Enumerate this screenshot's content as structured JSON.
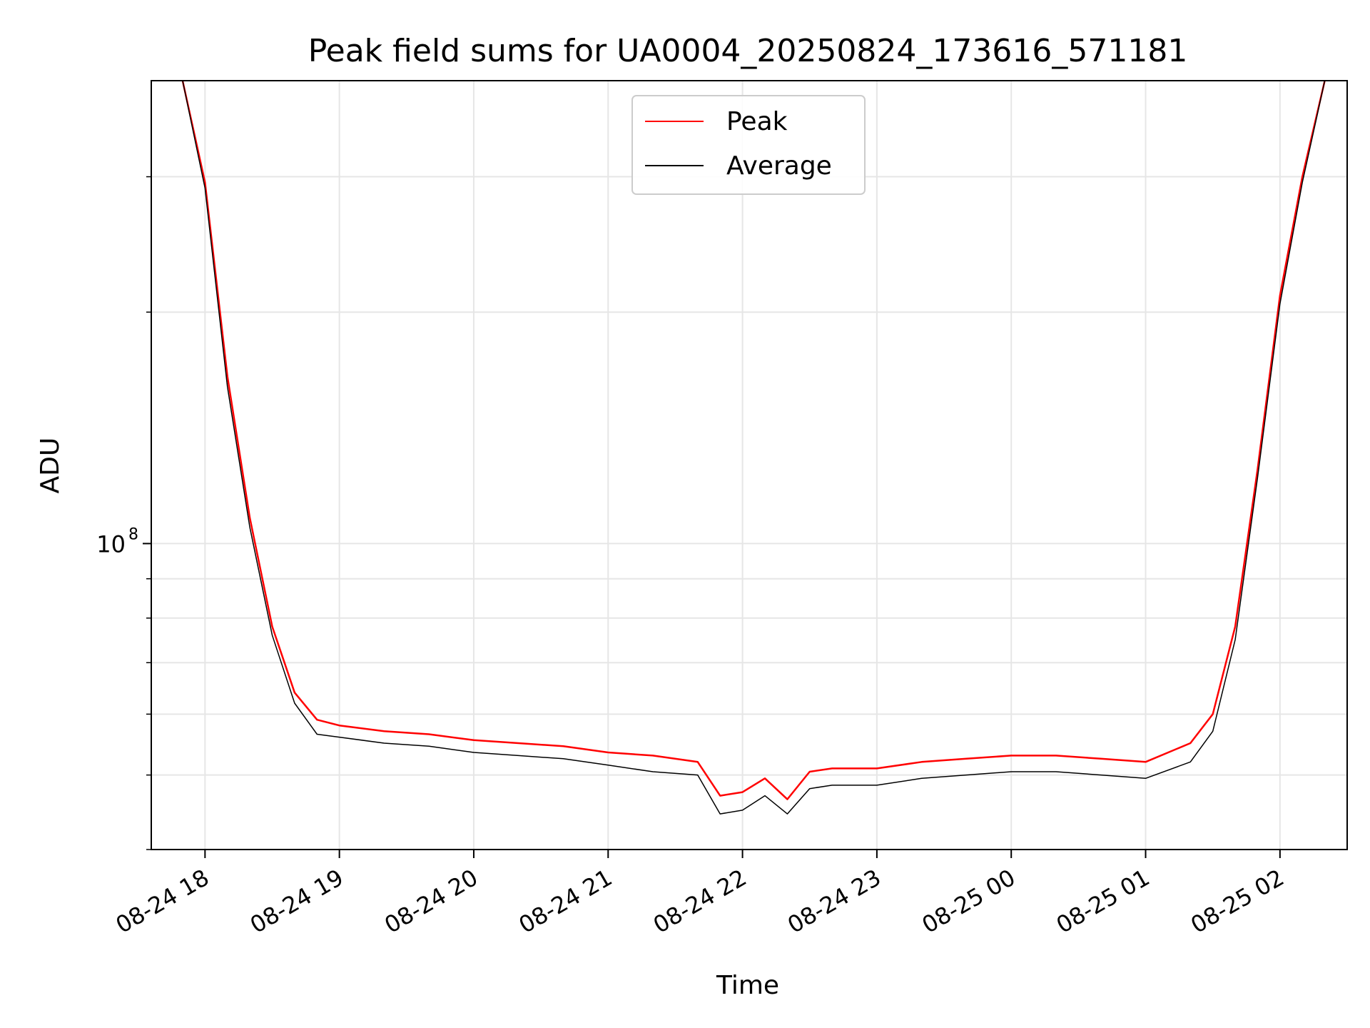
{
  "chart_data": {
    "type": "line",
    "title": "Peak field sums for UA0004_20250824_173616_571181",
    "xlabel": "Time",
    "ylabel": "ADU",
    "y_scale": "log",
    "ylim": [
      40000000,
      400000000
    ],
    "xlim": [
      "2025-08-24 17:36",
      "2025-08-25 02:30"
    ],
    "grid": true,
    "legend_position": "top-center",
    "x_tick_labels": [
      "08-24 18",
      "08-24 19",
      "08-24 20",
      "08-24 21",
      "08-24 22",
      "08-24 23",
      "08-25 00",
      "08-25 01",
      "08-25 02"
    ],
    "x_ticks": [
      "2025-08-24 18:00",
      "2025-08-24 19:00",
      "2025-08-24 20:00",
      "2025-08-24 21:00",
      "2025-08-24 22:00",
      "2025-08-24 23:00",
      "2025-08-25 00:00",
      "2025-08-25 01:00",
      "2025-08-25 02:00"
    ],
    "y_major_tick": {
      "value": 100000000,
      "label_base": "10",
      "label_exp": "8"
    },
    "y_minor_ticks": [
      40000000,
      50000000,
      60000000,
      70000000,
      80000000,
      90000000,
      200000000,
      300000000
    ],
    "series": [
      {
        "name": "Peak",
        "color": "#ff0000",
        "x": [
          "2025-08-24 17:50",
          "2025-08-24 18:00",
          "2025-08-24 18:10",
          "2025-08-24 18:20",
          "2025-08-24 18:30",
          "2025-08-24 18:40",
          "2025-08-24 18:50",
          "2025-08-24 19:00",
          "2025-08-24 19:20",
          "2025-08-24 19:40",
          "2025-08-24 20:00",
          "2025-08-24 20:20",
          "2025-08-24 20:40",
          "2025-08-24 21:00",
          "2025-08-24 21:20",
          "2025-08-24 21:40",
          "2025-08-24 21:50",
          "2025-08-24 22:00",
          "2025-08-24 22:10",
          "2025-08-24 22:20",
          "2025-08-24 22:30",
          "2025-08-24 22:40",
          "2025-08-24 23:00",
          "2025-08-24 23:20",
          "2025-08-24 23:40",
          "2025-08-25 00:00",
          "2025-08-25 00:20",
          "2025-08-25 00:40",
          "2025-08-25 01:00",
          "2025-08-25 01:20",
          "2025-08-25 01:30",
          "2025-08-25 01:40",
          "2025-08-25 01:50",
          "2025-08-25 02:00",
          "2025-08-25 02:10",
          "2025-08-25 02:20"
        ],
        "y": [
          400000000,
          295000000,
          165000000,
          108000000,
          78000000,
          64000000,
          59000000,
          58000000,
          57000000,
          56500000,
          55500000,
          55000000,
          54500000,
          53500000,
          53000000,
          52000000,
          47000000,
          47500000,
          49500000,
          46500000,
          50500000,
          51000000,
          51000000,
          52000000,
          52500000,
          53000000,
          53000000,
          52500000,
          52000000,
          55000000,
          60000000,
          78000000,
          125000000,
          210000000,
          300000000,
          400000000
        ]
      },
      {
        "name": "Average",
        "color": "#000000",
        "x": [
          "2025-08-24 17:50",
          "2025-08-24 18:00",
          "2025-08-24 18:10",
          "2025-08-24 18:20",
          "2025-08-24 18:30",
          "2025-08-24 18:40",
          "2025-08-24 18:50",
          "2025-08-24 19:00",
          "2025-08-24 19:20",
          "2025-08-24 19:40",
          "2025-08-24 20:00",
          "2025-08-24 20:20",
          "2025-08-24 20:40",
          "2025-08-24 21:00",
          "2025-08-24 21:20",
          "2025-08-24 21:40",
          "2025-08-24 21:50",
          "2025-08-24 22:00",
          "2025-08-24 22:10",
          "2025-08-24 22:20",
          "2025-08-24 22:30",
          "2025-08-24 22:40",
          "2025-08-24 23:00",
          "2025-08-24 23:20",
          "2025-08-24 23:40",
          "2025-08-25 00:00",
          "2025-08-25 00:20",
          "2025-08-25 00:40",
          "2025-08-25 01:00",
          "2025-08-25 01:20",
          "2025-08-25 01:30",
          "2025-08-25 01:40",
          "2025-08-25 01:50",
          "2025-08-25 02:00",
          "2025-08-25 02:10",
          "2025-08-25 02:20"
        ],
        "y": [
          400000000,
          290000000,
          160000000,
          105000000,
          76000000,
          62000000,
          56500000,
          56000000,
          55000000,
          54500000,
          53500000,
          53000000,
          52500000,
          51500000,
          50500000,
          50000000,
          44500000,
          45000000,
          47000000,
          44500000,
          48000000,
          48500000,
          48500000,
          49500000,
          50000000,
          50500000,
          50500000,
          50000000,
          49500000,
          52000000,
          57000000,
          75000000,
          122000000,
          205000000,
          295000000,
          400000000
        ]
      }
    ]
  }
}
